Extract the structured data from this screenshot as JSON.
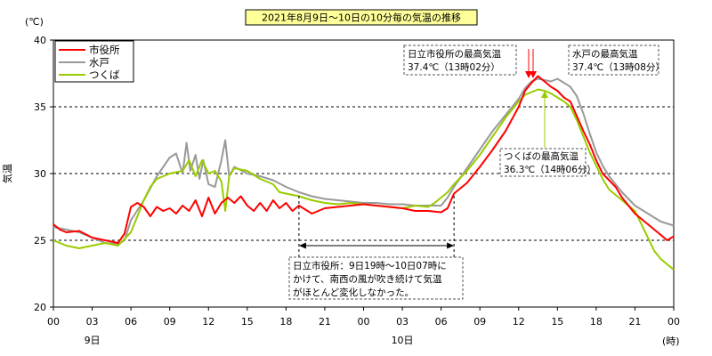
{
  "chart_data": {
    "type": "line",
    "title": "2021年8月9日～10日の10分毎の気温の推移",
    "ylabel": "気温",
    "yunit": "(℃)",
    "xunit": "(時)",
    "ylim": [
      20,
      40
    ],
    "yticks": [
      20,
      25,
      30,
      35,
      40
    ],
    "xlim_hours": [
      0,
      48
    ],
    "xtick_labels": [
      "00",
      "03",
      "06",
      "09",
      "12",
      "15",
      "18",
      "21",
      "00",
      "03",
      "06",
      "09",
      "12",
      "15",
      "18",
      "21",
      "00"
    ],
    "day_labels": [
      {
        "hour": 3,
        "label": "9日"
      },
      {
        "hour": 27,
        "label": "10日"
      }
    ],
    "grid_dashed_at": [
      25,
      30,
      35
    ],
    "legend_position": "top-left",
    "colors": {
      "hitachi": "#ff0000",
      "mito": "#999999",
      "tsukuba": "#99cc00",
      "arrow": "#ff0000"
    },
    "series": [
      {
        "key": "hitachi",
        "name": "市役所",
        "points": [
          [
            0,
            26.2
          ],
          [
            0.5,
            25.8
          ],
          [
            1,
            25.6
          ],
          [
            2,
            25.7
          ],
          [
            3,
            25.2
          ],
          [
            4,
            25.0
          ],
          [
            5,
            24.8
          ],
          [
            5.5,
            25.5
          ],
          [
            6,
            27.5
          ],
          [
            6.5,
            27.8
          ],
          [
            7,
            27.5
          ],
          [
            7.5,
            26.8
          ],
          [
            8,
            27.5
          ],
          [
            8.5,
            27.2
          ],
          [
            9,
            27.4
          ],
          [
            9.5,
            27.0
          ],
          [
            10,
            27.6
          ],
          [
            10.5,
            27.2
          ],
          [
            11,
            28.0
          ],
          [
            11.5,
            26.8
          ],
          [
            12,
            28.2
          ],
          [
            12.5,
            27.0
          ],
          [
            13,
            27.8
          ],
          [
            13.5,
            28.2
          ],
          [
            14,
            27.8
          ],
          [
            14.5,
            28.3
          ],
          [
            15,
            27.6
          ],
          [
            15.5,
            27.2
          ],
          [
            16,
            27.8
          ],
          [
            16.5,
            27.2
          ],
          [
            17,
            28.0
          ],
          [
            17.5,
            27.4
          ],
          [
            18,
            27.8
          ],
          [
            18.5,
            27.2
          ],
          [
            19,
            27.6
          ],
          [
            20,
            27.0
          ],
          [
            21,
            27.4
          ],
          [
            22,
            27.5
          ],
          [
            23,
            27.6
          ],
          [
            24,
            27.7
          ],
          [
            25,
            27.6
          ],
          [
            26,
            27.5
          ],
          [
            27,
            27.4
          ],
          [
            28,
            27.2
          ],
          [
            29,
            27.2
          ],
          [
            30,
            27.1
          ],
          [
            30.5,
            27.4
          ],
          [
            31,
            28.5
          ],
          [
            32,
            29.3
          ],
          [
            33,
            30.5
          ],
          [
            34,
            31.8
          ],
          [
            35,
            33.2
          ],
          [
            36,
            35.0
          ],
          [
            36.5,
            36.2
          ],
          [
            37,
            36.8
          ],
          [
            37.5,
            37.3
          ],
          [
            38,
            36.9
          ],
          [
            38.5,
            36.5
          ],
          [
            39,
            36.2
          ],
          [
            39.5,
            35.7
          ],
          [
            40,
            35.4
          ],
          [
            40.5,
            34.3
          ],
          [
            41,
            33.2
          ],
          [
            41.5,
            32.2
          ],
          [
            42,
            31.0
          ],
          [
            42.5,
            30.0
          ],
          [
            43,
            29.5
          ],
          [
            43.5,
            29.0
          ],
          [
            44,
            28.2
          ],
          [
            45,
            27.0
          ],
          [
            46,
            26.2
          ],
          [
            47,
            25.4
          ],
          [
            47.5,
            25.0
          ],
          [
            48,
            25.3
          ]
        ]
      },
      {
        "key": "mito",
        "name": "水戸",
        "points": [
          [
            0,
            26.0
          ],
          [
            1,
            25.8
          ],
          [
            2,
            25.6
          ],
          [
            3,
            25.2
          ],
          [
            4,
            24.8
          ],
          [
            5,
            24.7
          ],
          [
            5.5,
            25.0
          ],
          [
            6,
            26.5
          ],
          [
            7,
            28.0
          ],
          [
            8,
            29.8
          ],
          [
            9,
            31.2
          ],
          [
            9.5,
            31.5
          ],
          [
            10,
            30.0
          ],
          [
            10.3,
            32.3
          ],
          [
            10.6,
            30.2
          ],
          [
            11,
            31.4
          ],
          [
            11.3,
            29.6
          ],
          [
            11.6,
            31.0
          ],
          [
            12,
            29.2
          ],
          [
            12.5,
            29.0
          ],
          [
            13,
            31.0
          ],
          [
            13.3,
            32.5
          ],
          [
            13.6,
            29.8
          ],
          [
            14,
            30.5
          ],
          [
            15,
            30.0
          ],
          [
            16,
            29.8
          ],
          [
            17,
            29.5
          ],
          [
            18,
            29.0
          ],
          [
            19,
            28.6
          ],
          [
            20,
            28.3
          ],
          [
            21,
            28.1
          ],
          [
            22,
            28.0
          ],
          [
            23,
            27.9
          ],
          [
            24,
            27.8
          ],
          [
            25,
            27.8
          ],
          [
            26,
            27.7
          ],
          [
            27,
            27.7
          ],
          [
            28,
            27.6
          ],
          [
            29,
            27.6
          ],
          [
            30,
            27.6
          ],
          [
            30.5,
            28.2
          ],
          [
            31,
            29.0
          ],
          [
            32,
            30.4
          ],
          [
            33,
            31.8
          ],
          [
            34,
            33.2
          ],
          [
            35,
            34.4
          ],
          [
            36,
            35.6
          ],
          [
            36.5,
            36.4
          ],
          [
            37,
            36.9
          ],
          [
            37.5,
            37.1
          ],
          [
            38,
            37.0
          ],
          [
            38.5,
            36.9
          ],
          [
            39,
            37.1
          ],
          [
            39.5,
            36.8
          ],
          [
            40,
            36.5
          ],
          [
            40.5,
            35.8
          ],
          [
            41,
            34.5
          ],
          [
            41.5,
            33.0
          ],
          [
            42,
            31.6
          ],
          [
            42.5,
            30.6
          ],
          [
            43,
            29.8
          ],
          [
            44,
            28.6
          ],
          [
            45,
            27.6
          ],
          [
            46,
            27.0
          ],
          [
            47,
            26.4
          ],
          [
            48,
            26.1
          ]
        ]
      },
      {
        "key": "tsukuba",
        "name": "つくば",
        "points": [
          [
            0,
            25.0
          ],
          [
            1,
            24.6
          ],
          [
            2,
            24.4
          ],
          [
            3,
            24.6
          ],
          [
            4,
            24.8
          ],
          [
            5,
            24.6
          ],
          [
            6,
            25.6
          ],
          [
            6.5,
            26.8
          ],
          [
            7,
            28.0
          ],
          [
            7.5,
            29.0
          ],
          [
            8,
            29.6
          ],
          [
            9,
            30.0
          ],
          [
            10,
            30.2
          ],
          [
            10.5,
            31.0
          ],
          [
            11,
            29.8
          ],
          [
            11.5,
            31.0
          ],
          [
            12,
            30.0
          ],
          [
            12.5,
            30.2
          ],
          [
            13,
            29.4
          ],
          [
            13.3,
            27.2
          ],
          [
            13.6,
            29.8
          ],
          [
            14,
            30.4
          ],
          [
            15,
            30.2
          ],
          [
            16,
            29.6
          ],
          [
            17,
            29.2
          ],
          [
            17.5,
            28.6
          ],
          [
            18,
            28.5
          ],
          [
            19,
            28.3
          ],
          [
            20,
            28.0
          ],
          [
            21,
            27.8
          ],
          [
            22,
            27.7
          ],
          [
            23,
            27.8
          ],
          [
            24,
            27.7
          ],
          [
            25,
            27.6
          ],
          [
            26,
            27.5
          ],
          [
            27,
            27.4
          ],
          [
            28,
            27.6
          ],
          [
            29,
            27.5
          ],
          [
            29.5,
            27.8
          ],
          [
            30,
            28.2
          ],
          [
            30.5,
            28.6
          ],
          [
            31,
            29.2
          ],
          [
            32,
            30.2
          ],
          [
            33,
            31.4
          ],
          [
            34,
            32.8
          ],
          [
            35,
            34.2
          ],
          [
            36,
            35.4
          ],
          [
            36.5,
            35.9
          ],
          [
            37,
            36.1
          ],
          [
            37.5,
            36.3
          ],
          [
            38,
            36.2
          ],
          [
            38.5,
            36.0
          ],
          [
            39,
            35.7
          ],
          [
            39.5,
            35.4
          ],
          [
            40,
            35.0
          ],
          [
            40.5,
            34.0
          ],
          [
            41,
            32.8
          ],
          [
            41.5,
            31.6
          ],
          [
            42,
            30.6
          ],
          [
            42.5,
            29.6
          ],
          [
            43,
            28.8
          ],
          [
            44,
            28.0
          ],
          [
            45,
            27.2
          ],
          [
            46,
            25.2
          ],
          [
            46.5,
            24.2
          ],
          [
            47,
            23.6
          ],
          [
            47.5,
            23.2
          ],
          [
            48,
            22.8
          ]
        ]
      }
    ],
    "annotations": {
      "hitachi_max": {
        "lines": [
          "日立市役所の最高気温",
          "37.4℃（13時02分）"
        ]
      },
      "mito_max": {
        "lines": [
          "水戸の最高気温",
          "37.4℃（13時08分）"
        ]
      },
      "tsukuba_max": {
        "lines": [
          "つくばの最高気温",
          "36.3℃（14時06分）"
        ]
      },
      "period_note": {
        "lines": [
          "日立市役所：9日19時～10日07時に",
          "かけて、南西の風が吹き続けて気温",
          "がほとんど変化しなかった。"
        ],
        "span_hours": [
          19,
          31
        ]
      }
    }
  }
}
